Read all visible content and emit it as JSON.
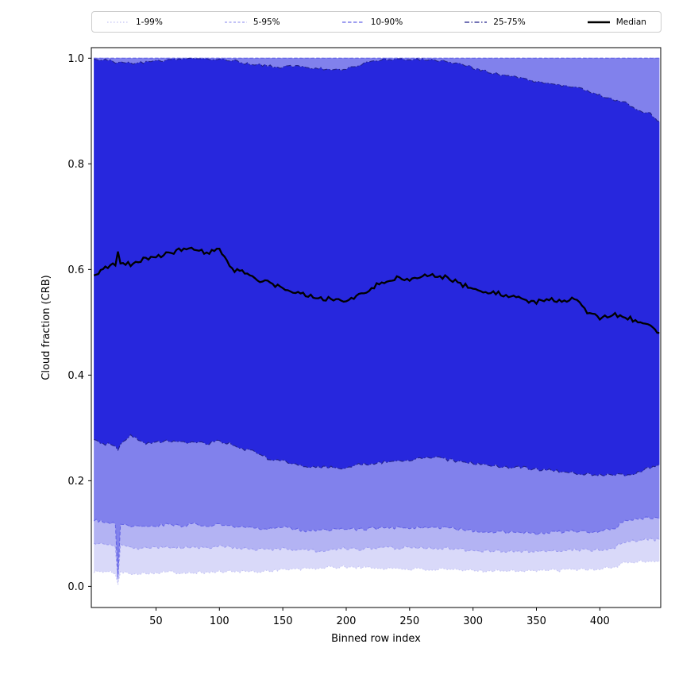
{
  "chart_data": {
    "type": "area",
    "title": "",
    "xlabel": "Binned row index",
    "ylabel": "Cloud fraction (CRB)",
    "xlim": [
      -1,
      448
    ],
    "ylim": [
      -0.04,
      1.02
    ],
    "xticks": [
      50,
      100,
      150,
      200,
      250,
      300,
      350,
      400
    ],
    "yticks": [
      0.0,
      0.2,
      0.4,
      0.6,
      0.8,
      1.0
    ],
    "grid": false,
    "legend_position": "top",
    "x": [
      1,
      10,
      18,
      20,
      22,
      30,
      40,
      50,
      60,
      70,
      80,
      90,
      100,
      110,
      120,
      130,
      140,
      150,
      160,
      170,
      180,
      190,
      200,
      210,
      220,
      230,
      240,
      250,
      260,
      270,
      280,
      290,
      300,
      310,
      320,
      330,
      340,
      350,
      360,
      370,
      380,
      390,
      400,
      410,
      420,
      430,
      440,
      447
    ],
    "bands": [
      {
        "name": "1-99%",
        "fill": "#d9d9f9",
        "line": "#c4c4f4",
        "dash": "1.5,2.5",
        "lower": [
          0.028,
          0.027,
          0.026,
          0.004,
          0.026,
          0.025,
          0.025,
          0.026,
          0.027,
          0.026,
          0.027,
          0.026,
          0.028,
          0.028,
          0.028,
          0.028,
          0.03,
          0.032,
          0.032,
          0.033,
          0.035,
          0.036,
          0.037,
          0.036,
          0.035,
          0.034,
          0.034,
          0.033,
          0.032,
          0.032,
          0.031,
          0.03,
          0.03,
          0.03,
          0.03,
          0.03,
          0.03,
          0.03,
          0.03,
          0.03,
          0.032,
          0.032,
          0.033,
          0.035,
          0.045,
          0.047,
          0.048,
          0.047
        ],
        "upper": 1.0
      },
      {
        "name": "5-95%",
        "fill": "#b3b3f3",
        "line": "#9d9df0",
        "dash": "3,2.5",
        "lower": [
          0.08,
          0.078,
          0.077,
          0.012,
          0.077,
          0.073,
          0.072,
          0.073,
          0.075,
          0.073,
          0.075,
          0.073,
          0.075,
          0.073,
          0.072,
          0.07,
          0.07,
          0.072,
          0.07,
          0.068,
          0.068,
          0.07,
          0.072,
          0.07,
          0.072,
          0.072,
          0.073,
          0.073,
          0.072,
          0.073,
          0.072,
          0.07,
          0.068,
          0.068,
          0.067,
          0.067,
          0.067,
          0.065,
          0.067,
          0.068,
          0.07,
          0.068,
          0.07,
          0.072,
          0.085,
          0.088,
          0.09,
          0.088
        ],
        "upper": 1.0
      },
      {
        "name": "10-90%",
        "fill": "#8181ec",
        "line": "#6565e6",
        "dash": "4.5,2.5",
        "lower": [
          0.125,
          0.122,
          0.12,
          0.02,
          0.12,
          0.115,
          0.112,
          0.115,
          0.118,
          0.115,
          0.118,
          0.115,
          0.117,
          0.115,
          0.112,
          0.11,
          0.11,
          0.112,
          0.108,
          0.105,
          0.105,
          0.107,
          0.108,
          0.108,
          0.11,
          0.11,
          0.112,
          0.112,
          0.11,
          0.112,
          0.11,
          0.108,
          0.105,
          0.105,
          0.103,
          0.103,
          0.103,
          0.1,
          0.102,
          0.103,
          0.105,
          0.103,
          0.105,
          0.108,
          0.125,
          0.128,
          0.13,
          0.128
        ],
        "upper": 1.0
      },
      {
        "name": "25-75%",
        "fill": "#2727dd",
        "line": "#22228a",
        "dash": "6,2.5,1.5,2.5",
        "lower": [
          0.275,
          0.27,
          0.268,
          0.255,
          0.268,
          0.285,
          0.272,
          0.272,
          0.275,
          0.272,
          0.275,
          0.27,
          0.275,
          0.27,
          0.26,
          0.252,
          0.24,
          0.238,
          0.23,
          0.228,
          0.225,
          0.225,
          0.225,
          0.23,
          0.233,
          0.235,
          0.238,
          0.24,
          0.242,
          0.245,
          0.24,
          0.235,
          0.233,
          0.23,
          0.228,
          0.225,
          0.225,
          0.222,
          0.22,
          0.218,
          0.215,
          0.213,
          0.21,
          0.212,
          0.21,
          0.215,
          0.225,
          0.23
        ],
        "upper": [
          0.998,
          0.997,
          0.993,
          0.992,
          0.993,
          0.99,
          0.992,
          0.995,
          0.996,
          0.998,
          0.999,
          0.999,
          0.998,
          0.996,
          0.99,
          0.988,
          0.985,
          0.983,
          0.985,
          0.982,
          0.98,
          0.978,
          0.98,
          0.985,
          0.995,
          0.998,
          0.999,
          0.998,
          0.998,
          0.997,
          0.993,
          0.988,
          0.982,
          0.975,
          0.97,
          0.965,
          0.962,
          0.955,
          0.952,
          0.948,
          0.945,
          0.938,
          0.93,
          0.922,
          0.915,
          0.9,
          0.895,
          0.88
        ]
      }
    ],
    "median": {
      "name": "Median",
      "color": "#000000",
      "width": 2.3,
      "values": [
        0.585,
        0.605,
        0.61,
        0.635,
        0.615,
        0.61,
        0.62,
        0.625,
        0.63,
        0.638,
        0.64,
        0.632,
        0.637,
        0.6,
        0.595,
        0.58,
        0.575,
        0.565,
        0.558,
        0.552,
        0.545,
        0.545,
        0.54,
        0.55,
        0.565,
        0.578,
        0.585,
        0.578,
        0.59,
        0.588,
        0.585,
        0.572,
        0.565,
        0.555,
        0.555,
        0.548,
        0.543,
        0.538,
        0.545,
        0.538,
        0.545,
        0.52,
        0.508,
        0.515,
        0.51,
        0.502,
        0.49,
        0.48
      ]
    }
  }
}
